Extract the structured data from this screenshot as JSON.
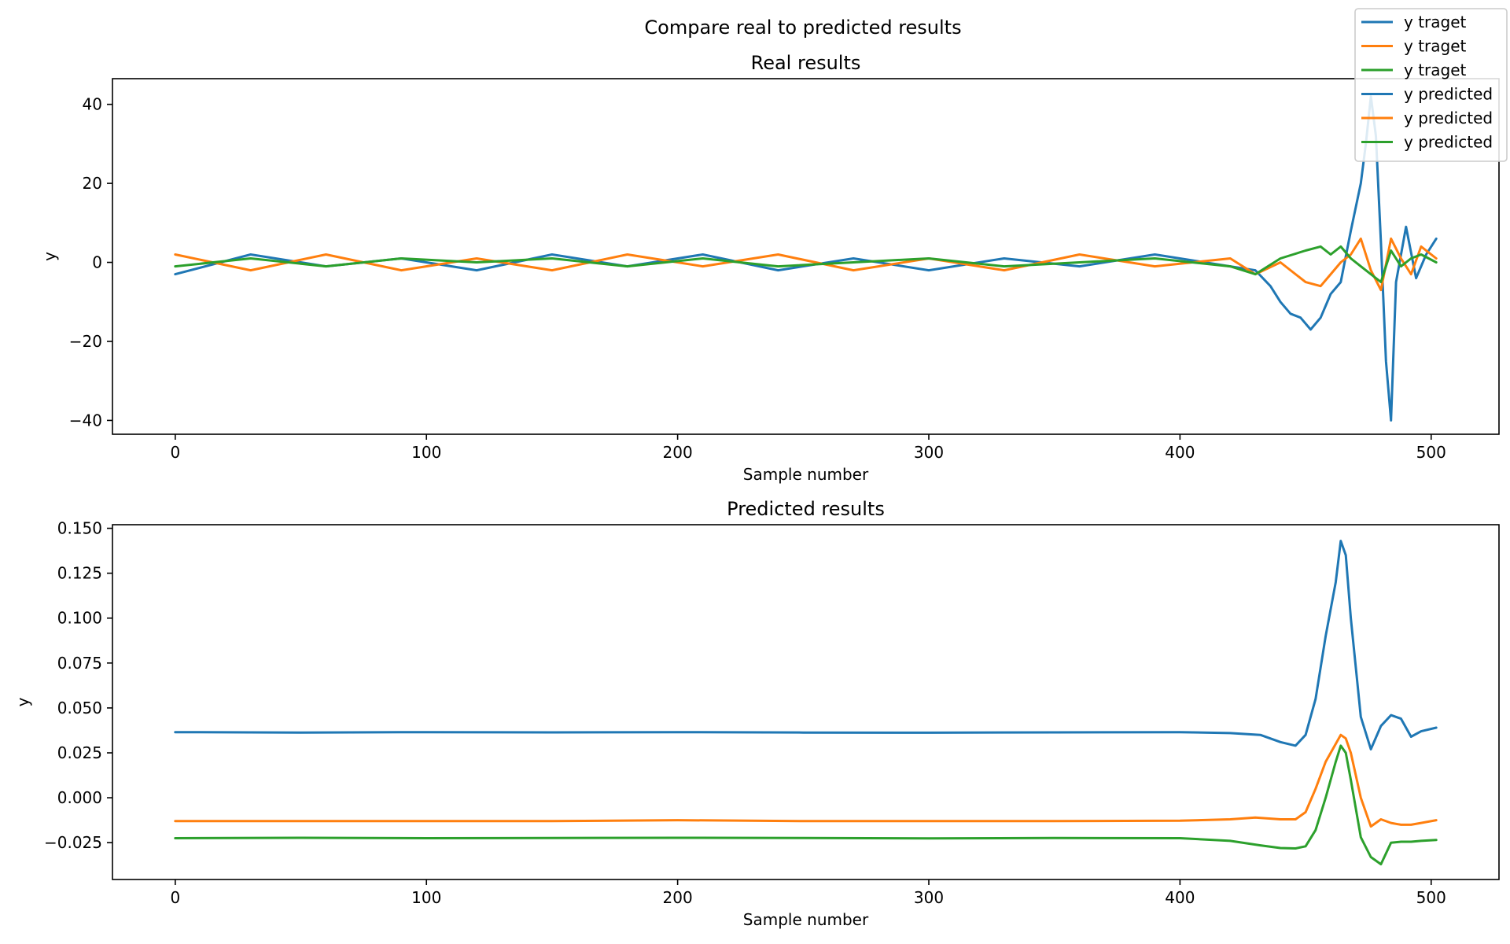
{
  "figure": {
    "suptitle": "Compare real to predicted results",
    "legend": {
      "placement": "top-right",
      "entries": [
        {
          "label": "y traget",
          "color": "#1f77b4"
        },
        {
          "label": "y traget",
          "color": "#ff7f0e"
        },
        {
          "label": "y traget",
          "color": "#2ca02c"
        },
        {
          "label": "y predicted",
          "color": "#1f77b4"
        },
        {
          "label": "y predicted",
          "color": "#ff7f0e"
        },
        {
          "label": "y predicted",
          "color": "#2ca02c"
        }
      ]
    }
  },
  "chart_data": [
    {
      "type": "line",
      "title": "Real results",
      "xlabel": "Sample number",
      "ylabel": "y",
      "xlim": [
        -25,
        527
      ],
      "ylim": [
        -43.5,
        46.5
      ],
      "xticks": [
        0,
        100,
        200,
        300,
        400,
        500
      ],
      "yticks": [
        -40,
        -20,
        0,
        20,
        40
      ],
      "ytick_labels": [
        "−40",
        "−20",
        "0",
        "20",
        "40"
      ],
      "grid": false,
      "series": [
        {
          "color": "#1f77b4",
          "x": [
            0,
            30,
            60,
            90,
            120,
            150,
            180,
            210,
            240,
            270,
            300,
            330,
            360,
            390,
            420,
            430,
            436,
            440,
            444,
            448,
            452,
            456,
            460,
            464,
            468,
            472,
            474,
            476,
            478,
            480,
            482,
            484,
            486,
            490,
            494,
            498,
            502
          ],
          "y": [
            -3,
            2,
            -1,
            1,
            -2,
            2,
            -1,
            2,
            -2,
            1,
            -2,
            1,
            -1,
            2,
            -1,
            -2,
            -6,
            -10,
            -13,
            -14,
            -17,
            -14,
            -8,
            -5,
            8,
            20,
            30,
            42,
            32,
            5,
            -25,
            -40,
            -5,
            9,
            -4,
            2,
            6
          ]
        },
        {
          "color": "#ff7f0e",
          "x": [
            0,
            30,
            60,
            90,
            120,
            150,
            180,
            210,
            240,
            270,
            300,
            330,
            360,
            390,
            420,
            430,
            440,
            450,
            456,
            460,
            464,
            468,
            472,
            476,
            480,
            484,
            488,
            492,
            496,
            502
          ],
          "y": [
            2,
            -2,
            2,
            -2,
            1,
            -2,
            2,
            -1,
            2,
            -2,
            1,
            -2,
            2,
            -1,
            1,
            -3,
            0,
            -5,
            -6,
            -3,
            0,
            2,
            6,
            -2,
            -7,
            6,
            1,
            -3,
            4,
            1
          ]
        },
        {
          "color": "#2ca02c",
          "x": [
            0,
            30,
            60,
            90,
            120,
            150,
            180,
            210,
            240,
            270,
            300,
            330,
            360,
            390,
            420,
            430,
            440,
            450,
            456,
            460,
            464,
            468,
            472,
            476,
            480,
            484,
            488,
            492,
            496,
            502
          ],
          "y": [
            -1,
            1,
            -1,
            1,
            0,
            1,
            -1,
            1,
            -1,
            0,
            1,
            -1,
            0,
            1,
            -1,
            -3,
            1,
            3,
            4,
            2,
            4,
            1,
            -1,
            -3,
            -5,
            3,
            -1,
            1,
            2,
            0
          ]
        }
      ]
    },
    {
      "type": "line",
      "title": "Predicted results",
      "xlabel": "Sample number",
      "ylabel": "y",
      "xlim": [
        -25,
        527
      ],
      "ylim": [
        -0.0455,
        0.152
      ],
      "xticks": [
        0,
        100,
        200,
        300,
        400,
        500
      ],
      "yticks": [
        -0.025,
        0.0,
        0.025,
        0.05,
        0.075,
        0.1,
        0.125,
        0.15
      ],
      "ytick_labels": [
        "−0.025",
        "0.000",
        "0.025",
        "0.050",
        "0.075",
        "0.100",
        "0.125",
        "0.150"
      ],
      "grid": false,
      "series": [
        {
          "color": "#1f77b4",
          "x": [
            0,
            50,
            100,
            150,
            200,
            250,
            300,
            350,
            400,
            420,
            432,
            440,
            446,
            450,
            454,
            458,
            462,
            464,
            466,
            468,
            472,
            476,
            480,
            484,
            488,
            492,
            496,
            502
          ],
          "y": [
            0.0365,
            0.0363,
            0.0365,
            0.0364,
            0.0365,
            0.0363,
            0.0362,
            0.0364,
            0.0365,
            0.036,
            0.035,
            0.031,
            0.029,
            0.035,
            0.055,
            0.09,
            0.12,
            0.143,
            0.135,
            0.1,
            0.045,
            0.027,
            0.04,
            0.046,
            0.044,
            0.034,
            0.037,
            0.039
          ]
        },
        {
          "color": "#ff7f0e",
          "x": [
            0,
            50,
            100,
            150,
            200,
            250,
            300,
            350,
            400,
            420,
            430,
            440,
            446,
            450,
            454,
            458,
            462,
            464,
            466,
            468,
            472,
            476,
            480,
            484,
            488,
            492,
            496,
            502
          ],
          "y": [
            -0.013,
            -0.013,
            -0.013,
            -0.013,
            -0.0125,
            -0.013,
            -0.013,
            -0.013,
            -0.0128,
            -0.012,
            -0.011,
            -0.012,
            -0.012,
            -0.008,
            0.005,
            0.02,
            0.03,
            0.035,
            0.033,
            0.025,
            0.0,
            -0.016,
            -0.012,
            -0.014,
            -0.015,
            -0.015,
            -0.014,
            -0.0125
          ]
        },
        {
          "color": "#2ca02c",
          "x": [
            0,
            50,
            100,
            150,
            200,
            250,
            300,
            350,
            400,
            420,
            432,
            440,
            446,
            450,
            454,
            458,
            462,
            464,
            466,
            468,
            472,
            476,
            480,
            484,
            488,
            492,
            496,
            502
          ],
          "y": [
            -0.0225,
            -0.0223,
            -0.0225,
            -0.0224,
            -0.0223,
            -0.0224,
            -0.0226,
            -0.0224,
            -0.0225,
            -0.024,
            -0.0265,
            -0.028,
            -0.0282,
            -0.027,
            -0.018,
            0.0,
            0.02,
            0.029,
            0.025,
            0.01,
            -0.022,
            -0.033,
            -0.037,
            -0.025,
            -0.0245,
            -0.0245,
            -0.024,
            -0.0235
          ]
        }
      ]
    }
  ]
}
